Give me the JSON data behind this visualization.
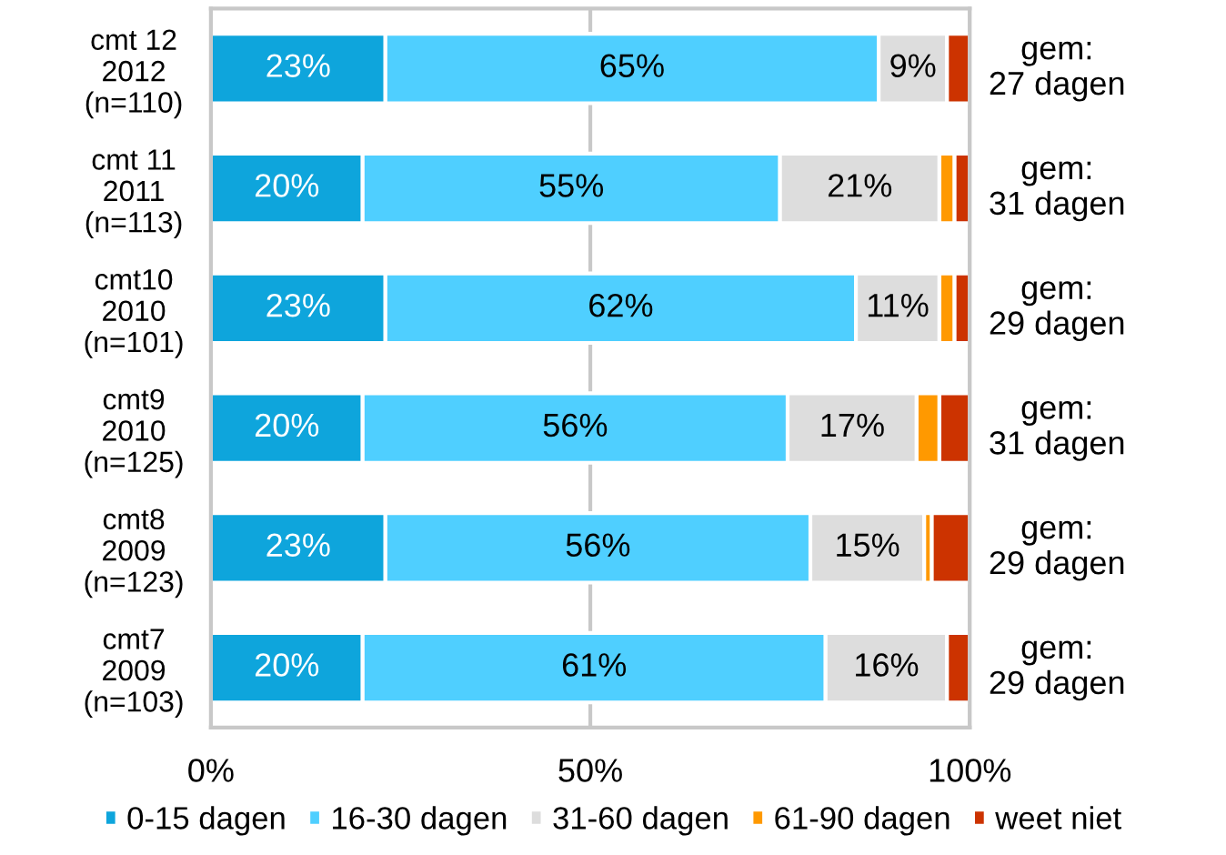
{
  "chart_data": {
    "type": "bar",
    "orientation": "horizontal",
    "stacked": true,
    "categories": [
      "cmt 12\n2012\n(n=110)",
      "cmt 11\n2011\n(n=113)",
      "cmt10\n2010\n(n=101)",
      "cmt9\n2010\n(n=125)",
      "cmt8\n2009\n(n=123)",
      "cmt7\n2009\n(n=103)"
    ],
    "series": [
      {
        "name": "0-15 dagen",
        "color": "#0ea5dc",
        "values": [
          23,
          20,
          23,
          20,
          23,
          20
        ],
        "value_labels": [
          "23%",
          "20%",
          "23%",
          "20%",
          "23%",
          "20%"
        ]
      },
      {
        "name": "16-30 dagen",
        "color": "#4fcfff",
        "values": [
          65,
          55,
          62,
          56,
          56,
          61
        ],
        "value_labels": [
          "65%",
          "55%",
          "62%",
          "56%",
          "56%",
          "61%"
        ]
      },
      {
        "name": "31-60 dagen",
        "color": "#dddddd",
        "values": [
          9,
          21,
          11,
          17,
          15,
          16
        ],
        "value_labels": [
          "9%",
          "21%",
          "11%",
          "17%",
          "15%",
          "16%"
        ]
      },
      {
        "name": "61-90 dagen",
        "color": "#ff9900",
        "values": [
          0,
          2,
          2,
          3,
          1,
          0
        ]
      },
      {
        "name": "weet niet",
        "color": "#cc3300",
        "values": [
          3,
          2,
          2,
          4,
          5,
          3
        ]
      }
    ],
    "xlim": [
      0,
      100
    ],
    "xticks": [
      {
        "value": 0,
        "label": "0%"
      },
      {
        "value": 50,
        "label": "50%"
      },
      {
        "value": 100,
        "label": "100%"
      }
    ],
    "grid": "x",
    "legend": "bottom",
    "annotations": [
      "gem:\n27 dagen",
      "gem:\n31 dagen",
      "gem:\n29 dagen",
      "gem:\n31 dagen",
      "gem:\n29 dagen",
      "gem:\n29 dagen"
    ]
  }
}
